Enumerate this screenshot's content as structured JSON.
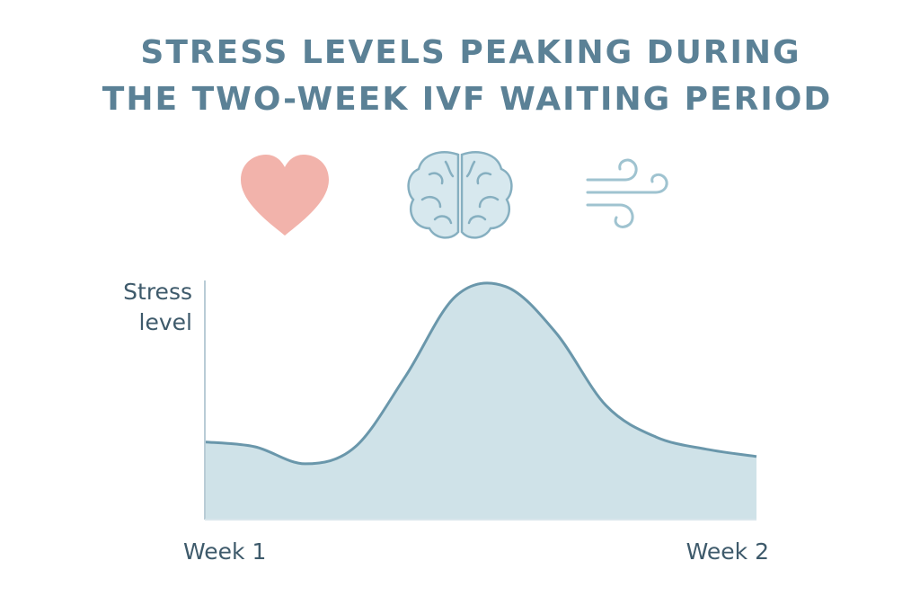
{
  "chart_data": {
    "type": "area",
    "title": [
      "STRESS LEVELS PEAKING DURING",
      "THE TWO-WEEK IVF WAITING PERIOD"
    ],
    "y_label": "Stress level",
    "categories": [
      "Week 1",
      null,
      null,
      null,
      null,
      null,
      null,
      null,
      null,
      null,
      null,
      "Week 2"
    ],
    "values": [
      32,
      30,
      23,
      30,
      59,
      92,
      96,
      77,
      47,
      34,
      29,
      26
    ],
    "ylim": [
      0,
      100
    ],
    "color": "#6a97ab",
    "fill": "#cfe2e8"
  }
}
